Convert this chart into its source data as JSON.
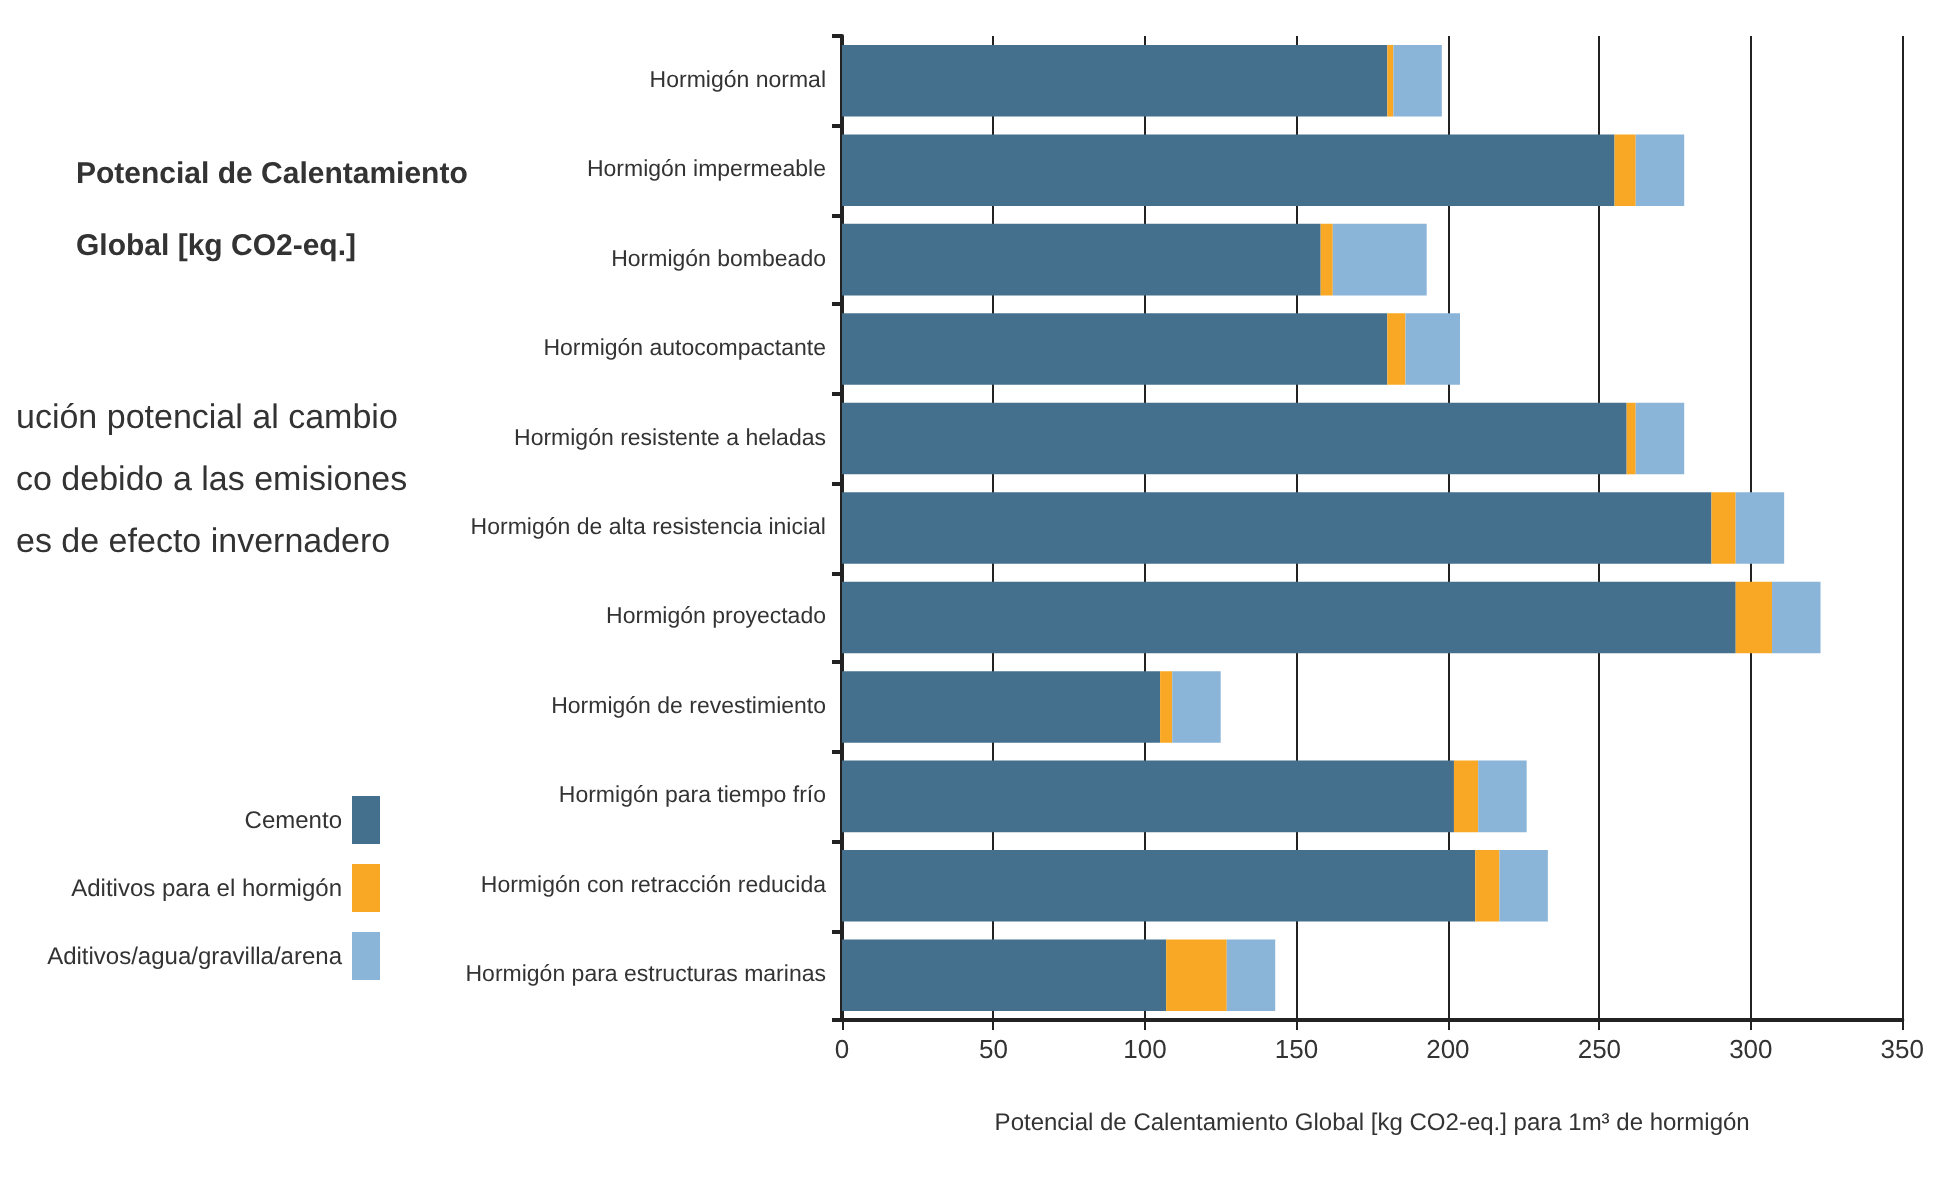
{
  "chart_data": {
    "type": "bar",
    "orientation": "horizontal",
    "stacked": true,
    "title": "Potencial de Calentamiento Global [kg CO2-eq.]",
    "xlabel": "Potencial de Calentamiento Global [kg CO2-eq.] para 1m³ de hormigón",
    "annotations": [
      "ución potencial al cambio\nco debido a las emisiones\nes de efecto invernadero"
    ],
    "categories": [
      "Hormigón normal",
      "Hormigón impermeable",
      "Hormigón bombeado",
      "Hormigón autocompactante",
      "Hormigón resistente a heladas",
      "Hormigón de alta resistencia inicial",
      "Hormigón proyectado",
      "Hormigón de revestimiento",
      "Hormigón para tiempo frío",
      "Hormigón con retracción reducida",
      "Hormigón para estructuras marinas"
    ],
    "series": [
      {
        "name": "Cemento",
        "color": "#44708e",
        "values": [
          180,
          255,
          158,
          180,
          259,
          287,
          295,
          105,
          202,
          209,
          107
        ]
      },
      {
        "name": "Aditivos para el hormigón",
        "color": "#f9a825",
        "values": [
          2,
          7,
          4,
          6,
          3,
          8,
          12,
          4,
          8,
          8,
          20
        ]
      },
      {
        "name": "Aditivos/agua/gravilla/arena",
        "color": "#8ab4d8",
        "values": [
          16,
          16,
          31,
          18,
          16,
          16,
          16,
          16,
          16,
          16,
          16
        ]
      }
    ],
    "xlim": [
      0,
      350
    ],
    "xticks": [
      0,
      50,
      100,
      150,
      200,
      250,
      300,
      350
    ],
    "grid": "x",
    "legend": "left"
  }
}
